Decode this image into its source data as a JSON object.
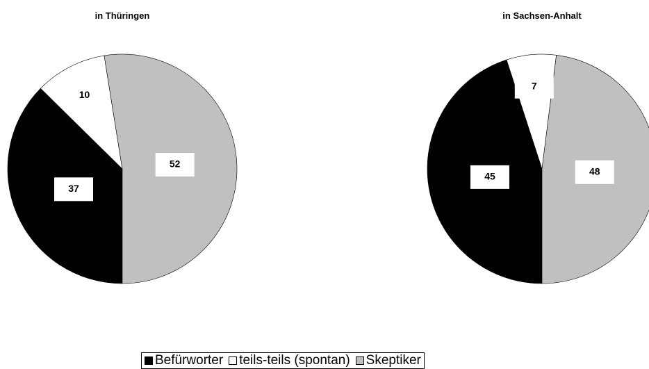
{
  "chart_data": [
    {
      "type": "pie",
      "title": "in Thüringen",
      "categories": [
        "Befürworter",
        "teils-teils (spontan)",
        "Skeptiker"
      ],
      "values": [
        37,
        10,
        52
      ],
      "colors": [
        "#000000",
        "#ffffff",
        "#c0c0c0"
      ]
    },
    {
      "type": "pie",
      "title": "in Sachsen-Anhalt",
      "categories": [
        "Befürworter",
        "teils-teils (spontan)",
        "Skeptiker"
      ],
      "values": [
        45,
        7,
        48
      ],
      "colors": [
        "#000000",
        "#ffffff",
        "#c0c0c0"
      ]
    }
  ]
}
